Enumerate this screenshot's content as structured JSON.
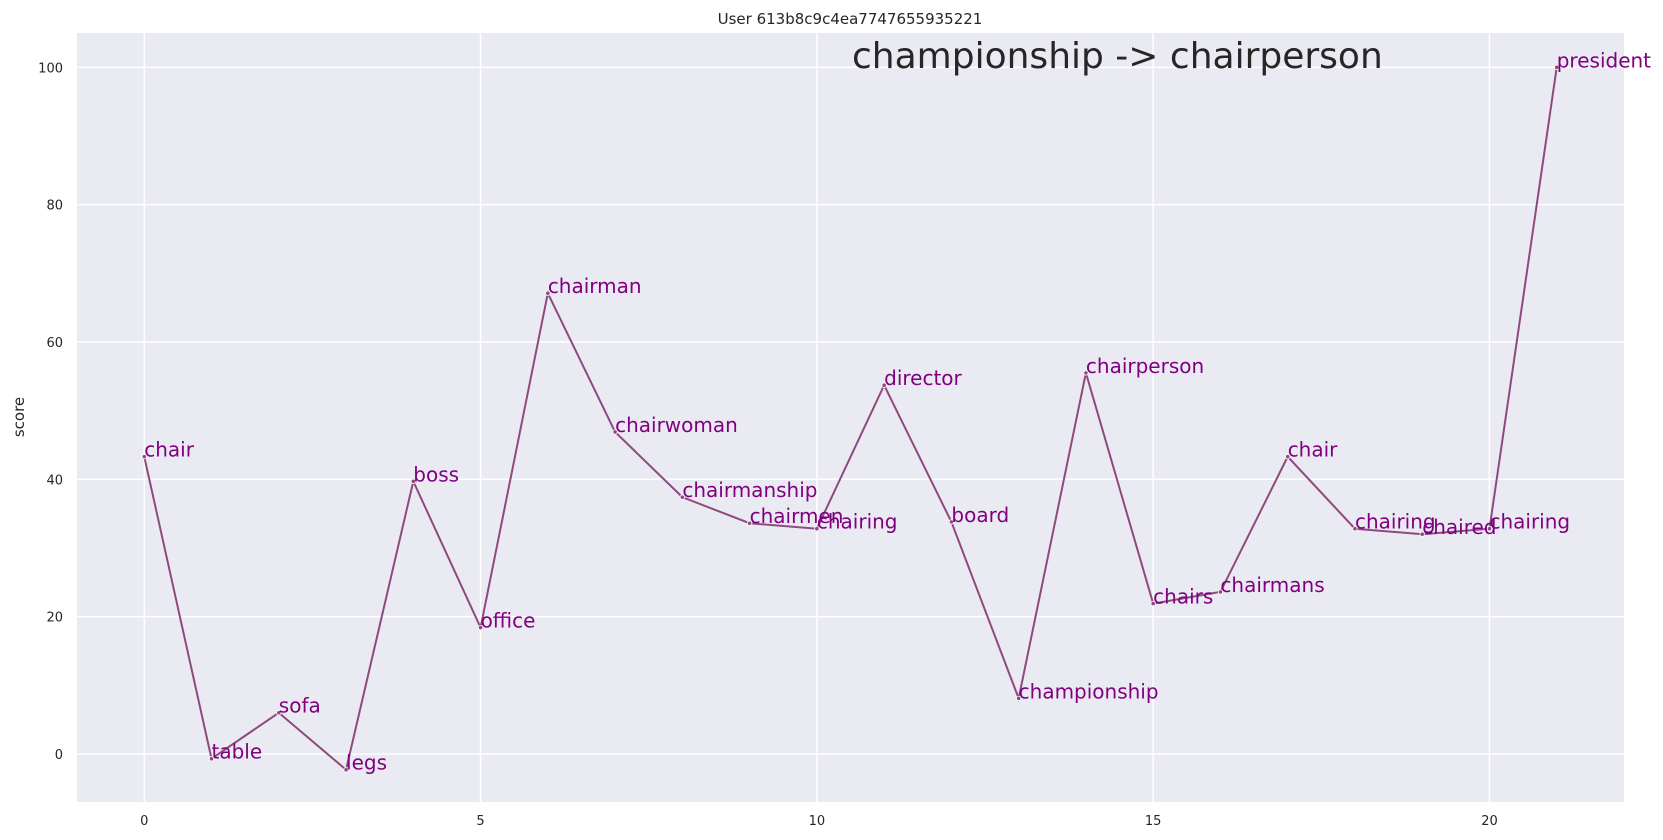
{
  "chart_data": {
    "type": "line",
    "title": "User 613b8c9c4ea7747655935221",
    "annotation": "championship -> chairperson",
    "xlabel": "",
    "ylabel": "score",
    "xlim": [
      -1,
      22
    ],
    "ylim": [
      -7,
      105
    ],
    "xticks": [
      0,
      5,
      10,
      15,
      20
    ],
    "yticks": [
      0,
      20,
      40,
      60,
      80,
      100
    ],
    "grid": true,
    "line_color": "#8e4a7f",
    "label_color": "#800080",
    "background_color": "#eaeaf2",
    "points": [
      {
        "x": 0,
        "y": 43.3,
        "label": "chair"
      },
      {
        "x": 1,
        "y": -0.7,
        "label": "table"
      },
      {
        "x": 2,
        "y": 6.0,
        "label": "sofa"
      },
      {
        "x": 3,
        "y": -2.3,
        "label": "legs"
      },
      {
        "x": 4,
        "y": 39.7,
        "label": "boss"
      },
      {
        "x": 5,
        "y": 18.4,
        "label": "office"
      },
      {
        "x": 6,
        "y": 67.1,
        "label": "chairman"
      },
      {
        "x": 7,
        "y": 46.9,
        "label": "chairwoman"
      },
      {
        "x": 8,
        "y": 37.4,
        "label": "chairmanship"
      },
      {
        "x": 9,
        "y": 33.6,
        "label": "chairmen"
      },
      {
        "x": 10,
        "y": 32.8,
        "label": "chairing"
      },
      {
        "x": 11,
        "y": 53.7,
        "label": "director"
      },
      {
        "x": 12,
        "y": 33.8,
        "label": "board"
      },
      {
        "x": 13,
        "y": 8.1,
        "label": "championship"
      },
      {
        "x": 14,
        "y": 55.5,
        "label": "chairperson"
      },
      {
        "x": 15,
        "y": 21.9,
        "label": "chairs"
      },
      {
        "x": 16,
        "y": 23.6,
        "label": "chairmans"
      },
      {
        "x": 17,
        "y": 43.3,
        "label": "chair"
      },
      {
        "x": 18,
        "y": 32.8,
        "label": "chairing"
      },
      {
        "x": 19,
        "y": 32.0,
        "label": "chaired"
      },
      {
        "x": 20,
        "y": 32.8,
        "label": "chairing"
      },
      {
        "x": 21,
        "y": 100.0,
        "label": "president"
      }
    ]
  }
}
